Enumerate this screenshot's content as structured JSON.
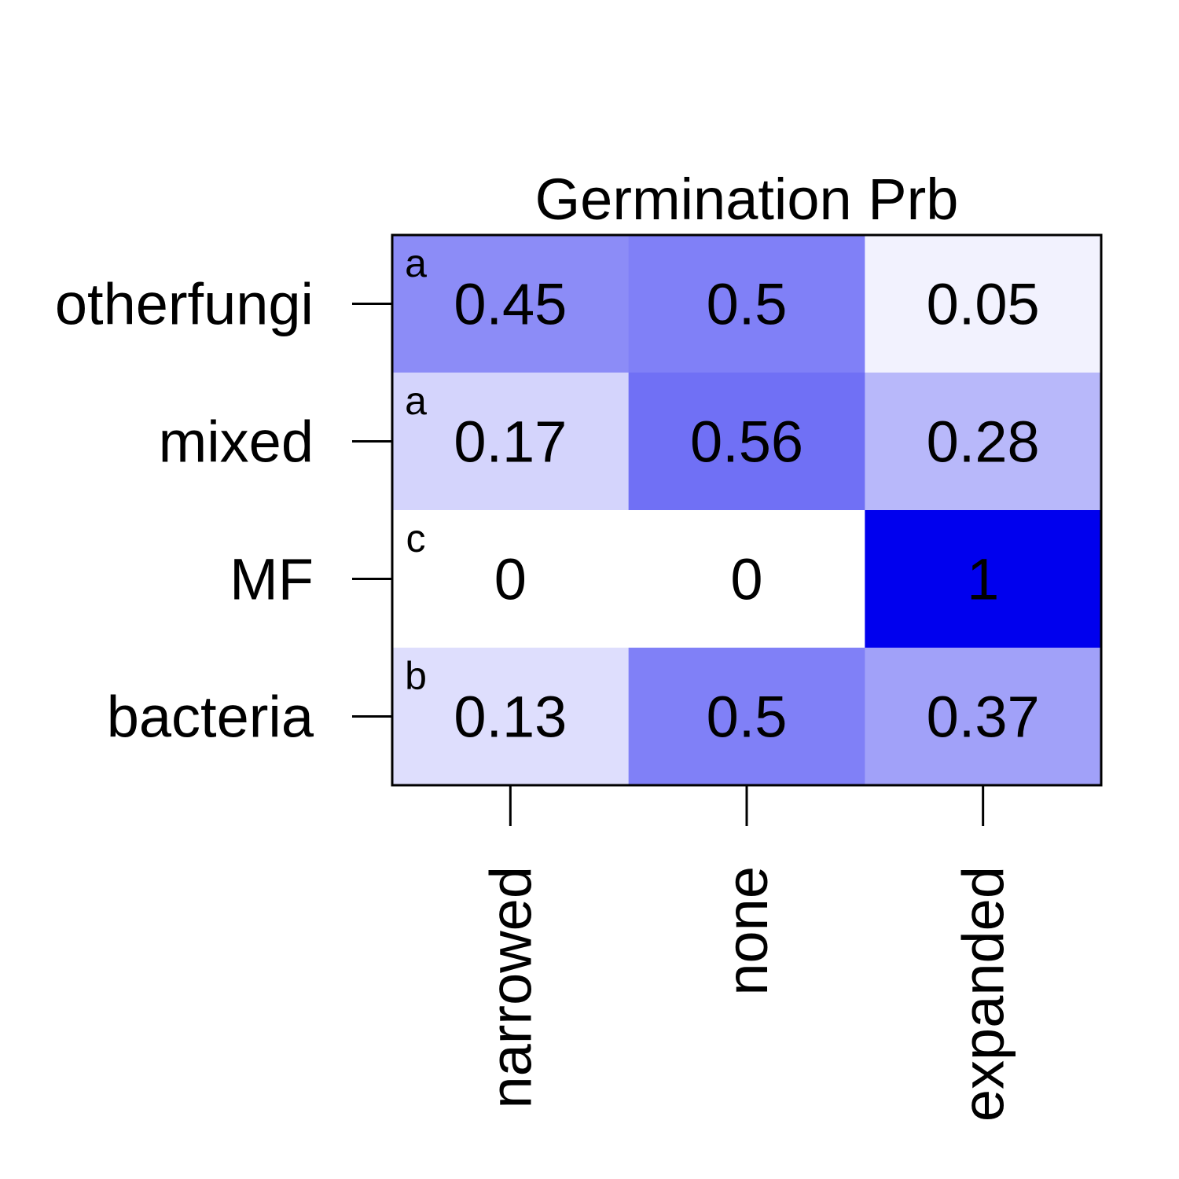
{
  "chart_data": {
    "type": "heatmap",
    "title": "Germination Prb",
    "xlabel": "",
    "ylabel": "",
    "x_categories": [
      "narrowed",
      "none",
      "expanded"
    ],
    "y_categories": [
      "otherfungi",
      "mixed",
      "MF",
      "bacteria"
    ],
    "values": [
      [
        0.45,
        0.5,
        0.05
      ],
      [
        0.17,
        0.56,
        0.28
      ],
      [
        0,
        0,
        1
      ],
      [
        0.13,
        0.5,
        0.37
      ]
    ],
    "value_labels": [
      [
        "0.45",
        "0.5",
        "0.05"
      ],
      [
        "0.17",
        "0.56",
        "0.28"
      ],
      [
        "0",
        "0",
        "1"
      ],
      [
        "0.13",
        "0.5",
        "0.37"
      ]
    ],
    "row_letters": [
      "a",
      "a",
      "c",
      "b"
    ],
    "color_low": "#ffffff",
    "color_high": "#0000ee",
    "color_range": [
      0,
      1
    ],
    "legend": "none",
    "grid": false
  }
}
